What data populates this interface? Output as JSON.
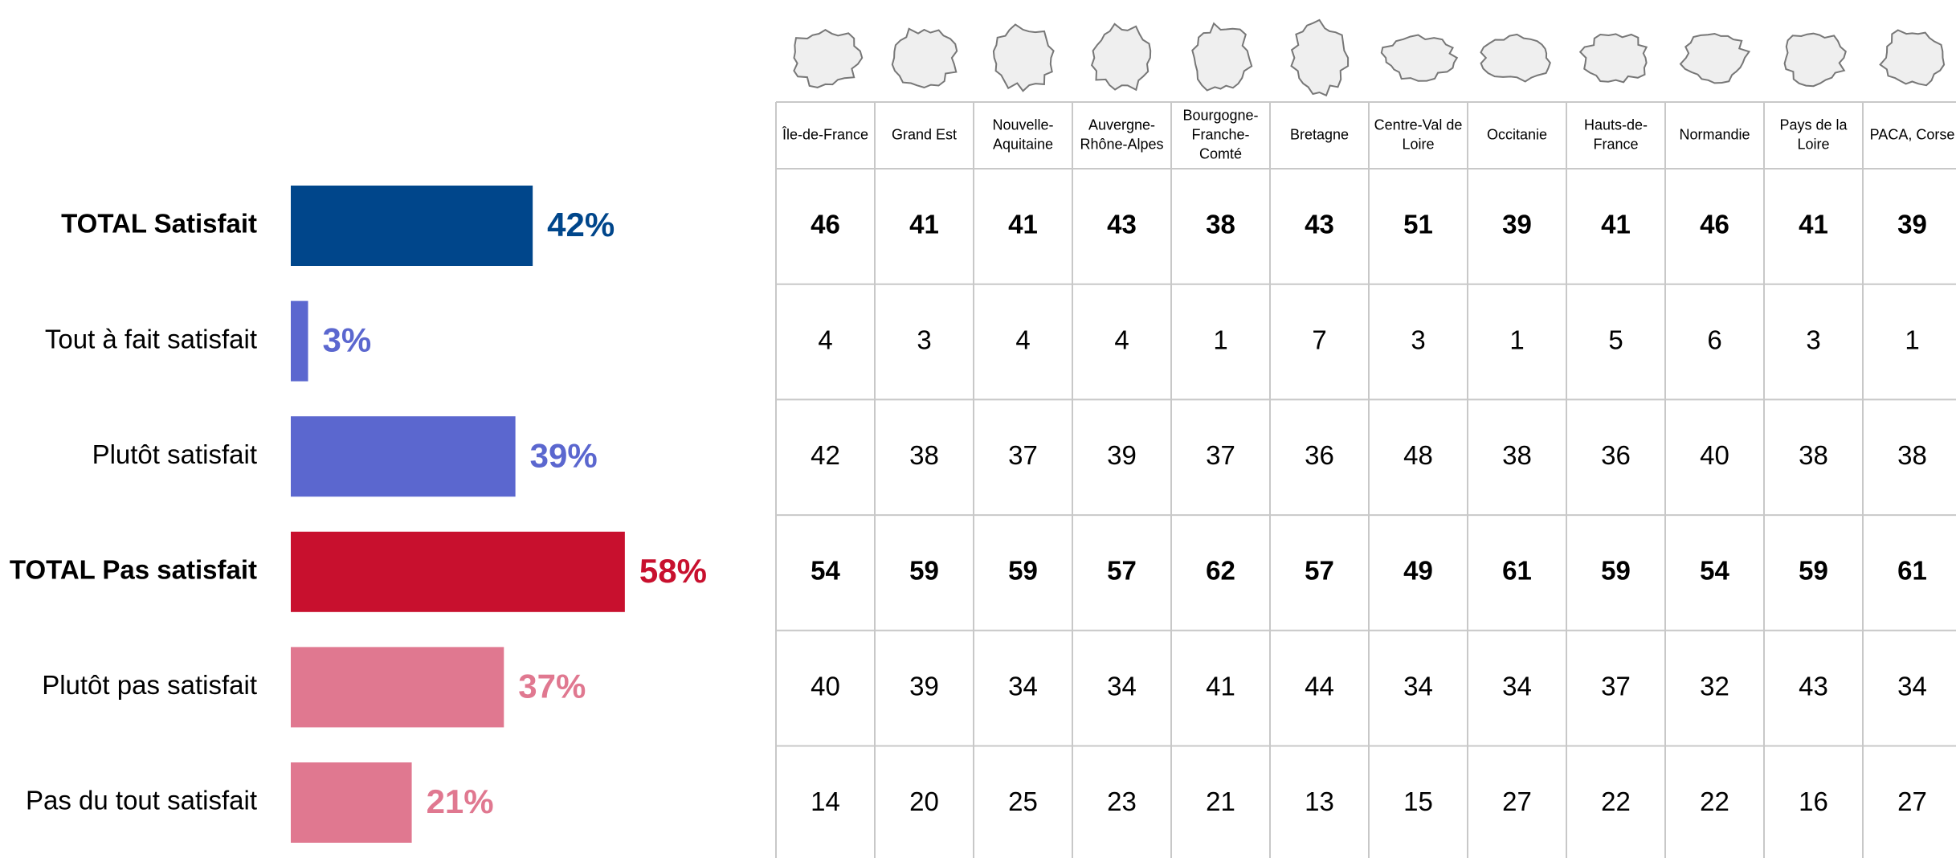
{
  "chart_data": {
    "type": "bar",
    "categories": [
      "TOTAL Satisfait",
      "Tout à fait satisfait",
      "Plutôt satisfait",
      "TOTAL Pas satisfait",
      "Plutôt pas satisfait",
      "Pas du tout satisfait"
    ],
    "values": [
      42,
      3,
      39,
      58,
      37,
      21
    ],
    "value_labels": [
      "42%",
      "3%",
      "39%",
      "58%",
      "37%",
      "21%"
    ],
    "colors": [
      "#00468b",
      "#5b67cf",
      "#5b67cf",
      "#c8102e",
      "#e07890",
      "#e07890"
    ],
    "bold": [
      true,
      false,
      false,
      true,
      false,
      false
    ]
  },
  "table": {
    "columns": [
      "Île-de-France",
      "Grand Est",
      "Nouvelle-Aquitaine",
      "Auvergne-Rhône-Alpes",
      "Bourgogne-Franche-Comté",
      "Bretagne",
      "Centre-Val de Loire",
      "Occitanie",
      "Hauts-de-France",
      "Normandie",
      "Pays de la Loire",
      "PACA, Corse"
    ],
    "rows": [
      [
        46,
        41,
        41,
        43,
        38,
        43,
        51,
        39,
        41,
        46,
        41,
        39
      ],
      [
        4,
        3,
        4,
        4,
        1,
        7,
        3,
        1,
        5,
        6,
        3,
        1
      ],
      [
        42,
        38,
        37,
        39,
        37,
        36,
        48,
        38,
        36,
        40,
        38,
        38
      ],
      [
        54,
        59,
        59,
        57,
        62,
        57,
        49,
        61,
        59,
        54,
        59,
        61
      ],
      [
        40,
        39,
        34,
        34,
        41,
        44,
        34,
        34,
        37,
        32,
        43,
        34
      ],
      [
        14,
        20,
        25,
        23,
        21,
        13,
        15,
        27,
        22,
        22,
        16,
        27
      ]
    ]
  }
}
